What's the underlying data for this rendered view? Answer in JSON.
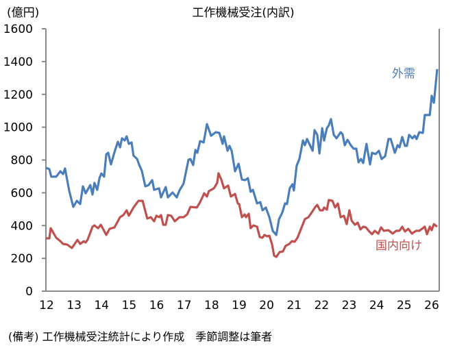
{
  "chart_data": {
    "type": "line",
    "title": "工作機械受注(内訳)",
    "ylabel": "(億円)",
    "xlabel": "",
    "ylim": [
      0,
      1600
    ],
    "yticks": [
      0,
      200,
      400,
      600,
      800,
      1000,
      1200,
      1400,
      1600
    ],
    "xlim": [
      12,
      26.25
    ],
    "xticks": [
      "12",
      "13",
      "14",
      "15",
      "16",
      "17",
      "18",
      "19",
      "20",
      "21",
      "22",
      "23",
      "24",
      "25",
      "26"
    ],
    "grid": false,
    "note": "(備考) 工作機械受注統計により作成　季節調整は筆者",
    "series": [
      {
        "name": "外需",
        "color": "#4a7ebb",
        "points": [
          [
            11.98,
            752
          ],
          [
            12.1,
            744
          ],
          [
            12.17,
            698
          ],
          [
            12.35,
            698
          ],
          [
            12.5,
            731
          ],
          [
            12.6,
            714
          ],
          [
            12.67,
            748
          ],
          [
            12.82,
            614
          ],
          [
            12.97,
            514
          ],
          [
            13.1,
            551
          ],
          [
            13.22,
            531
          ],
          [
            13.32,
            639
          ],
          [
            13.42,
            597
          ],
          [
            13.59,
            647
          ],
          [
            13.67,
            589
          ],
          [
            13.74,
            660
          ],
          [
            13.84,
            618
          ],
          [
            13.92,
            689
          ],
          [
            13.99,
            718
          ],
          [
            14.09,
            698
          ],
          [
            14.17,
            835
          ],
          [
            14.24,
            844
          ],
          [
            14.34,
            773
          ],
          [
            14.47,
            848
          ],
          [
            14.59,
            911
          ],
          [
            14.67,
            877
          ],
          [
            14.74,
            932
          ],
          [
            14.84,
            919
          ],
          [
            14.91,
            944
          ],
          [
            14.99,
            898
          ],
          [
            15.09,
            907
          ],
          [
            15.16,
            827
          ],
          [
            15.29,
            806
          ],
          [
            15.36,
            773
          ],
          [
            15.46,
            735
          ],
          [
            15.59,
            639
          ],
          [
            15.71,
            647
          ],
          [
            15.84,
            677
          ],
          [
            15.91,
            618
          ],
          [
            16.09,
            627
          ],
          [
            16.16,
            572
          ],
          [
            16.33,
            635
          ],
          [
            16.41,
            572
          ],
          [
            16.58,
            602
          ],
          [
            16.73,
            572
          ],
          [
            16.83,
            614
          ],
          [
            16.98,
            656
          ],
          [
            17.16,
            802
          ],
          [
            17.23,
            806
          ],
          [
            17.33,
            769
          ],
          [
            17.41,
            861
          ],
          [
            17.48,
            844
          ],
          [
            17.58,
            915
          ],
          [
            17.71,
            907
          ],
          [
            17.83,
            1019
          ],
          [
            17.98,
            948
          ],
          [
            18.15,
            969
          ],
          [
            18.28,
            965
          ],
          [
            18.4,
            898
          ],
          [
            18.45,
            944
          ],
          [
            18.58,
            856
          ],
          [
            18.65,
            886
          ],
          [
            18.73,
            856
          ],
          [
            18.85,
            731
          ],
          [
            18.98,
            777
          ],
          [
            19.1,
            681
          ],
          [
            19.22,
            677
          ],
          [
            19.32,
            689
          ],
          [
            19.42,
            606
          ],
          [
            19.5,
            618
          ],
          [
            19.65,
            535
          ],
          [
            19.77,
            543
          ],
          [
            19.85,
            493
          ],
          [
            19.97,
            510
          ],
          [
            20.1,
            451
          ],
          [
            20.22,
            368
          ],
          [
            20.35,
            343
          ],
          [
            20.45,
            439
          ],
          [
            20.57,
            480
          ],
          [
            20.67,
            535
          ],
          [
            20.74,
            531
          ],
          [
            20.84,
            627
          ],
          [
            20.94,
            652
          ],
          [
            20.99,
            614
          ],
          [
            21.09,
            765
          ],
          [
            21.19,
            806
          ],
          [
            21.32,
            919
          ],
          [
            21.39,
            890
          ],
          [
            21.47,
            928
          ],
          [
            21.67,
            856
          ],
          [
            21.74,
            982
          ],
          [
            21.84,
            953
          ],
          [
            21.92,
            840
          ],
          [
            22.02,
            994
          ],
          [
            22.09,
            919
          ],
          [
            22.19,
            994
          ],
          [
            22.26,
            1011
          ],
          [
            22.34,
            1049
          ],
          [
            22.44,
            953
          ],
          [
            22.54,
            932
          ],
          [
            22.69,
            969
          ],
          [
            22.76,
            957
          ],
          [
            22.84,
            890
          ],
          [
            22.94,
            923
          ],
          [
            23.06,
            890
          ],
          [
            23.16,
            869
          ],
          [
            23.26,
            869
          ],
          [
            23.34,
            786
          ],
          [
            23.43,
            806
          ],
          [
            23.51,
            781
          ],
          [
            23.63,
            898
          ],
          [
            23.76,
            773
          ],
          [
            23.83,
            844
          ],
          [
            23.96,
            836
          ],
          [
            24.08,
            856
          ],
          [
            24.18,
            806
          ],
          [
            24.31,
            823
          ],
          [
            24.43,
            928
          ],
          [
            24.51,
            928
          ],
          [
            24.66,
            844
          ],
          [
            24.76,
            890
          ],
          [
            24.83,
            877
          ],
          [
            24.93,
            940
          ],
          [
            25.03,
            886
          ],
          [
            25.1,
            886
          ],
          [
            25.18,
            953
          ],
          [
            25.3,
            932
          ],
          [
            25.38,
            948
          ],
          [
            25.45,
            928
          ],
          [
            25.55,
            969
          ],
          [
            25.68,
            965
          ],
          [
            25.75,
            1074
          ],
          [
            25.93,
            1074
          ],
          [
            26.0,
            1191
          ],
          [
            26.08,
            1149
          ],
          [
            26.2,
            1354
          ]
        ]
      },
      {
        "name": "国内向け",
        "color": "#c0504d",
        "points": [
          [
            11.98,
            322
          ],
          [
            12.1,
            322
          ],
          [
            12.15,
            384
          ],
          [
            12.35,
            326
          ],
          [
            12.5,
            305
          ],
          [
            12.6,
            288
          ],
          [
            12.75,
            284
          ],
          [
            12.92,
            263
          ],
          [
            13.12,
            313
          ],
          [
            13.22,
            288
          ],
          [
            13.35,
            305
          ],
          [
            13.42,
            297
          ],
          [
            13.49,
            313
          ],
          [
            13.67,
            393
          ],
          [
            13.74,
            401
          ],
          [
            13.87,
            384
          ],
          [
            13.97,
            405
          ],
          [
            14.17,
            343
          ],
          [
            14.29,
            380
          ],
          [
            14.47,
            389
          ],
          [
            14.67,
            451
          ],
          [
            14.79,
            464
          ],
          [
            14.91,
            493
          ],
          [
            14.99,
            460
          ],
          [
            15.16,
            510
          ],
          [
            15.34,
            551
          ],
          [
            15.49,
            551
          ],
          [
            15.66,
            443
          ],
          [
            15.79,
            451
          ],
          [
            15.91,
            426
          ],
          [
            15.99,
            460
          ],
          [
            16.09,
            451
          ],
          [
            16.16,
            464
          ],
          [
            16.24,
            405
          ],
          [
            16.33,
            405
          ],
          [
            16.41,
            464
          ],
          [
            16.53,
            460
          ],
          [
            16.66,
            426
          ],
          [
            16.83,
            451
          ],
          [
            16.98,
            451
          ],
          [
            17.11,
            468
          ],
          [
            17.23,
            514
          ],
          [
            17.46,
            510
          ],
          [
            17.58,
            543
          ],
          [
            17.73,
            597
          ],
          [
            17.83,
            577
          ],
          [
            17.9,
            610
          ],
          [
            18.08,
            627
          ],
          [
            18.2,
            660
          ],
          [
            18.25,
            719
          ],
          [
            18.35,
            681
          ],
          [
            18.45,
            627
          ],
          [
            18.6,
            644
          ],
          [
            18.7,
            577
          ],
          [
            18.85,
            593
          ],
          [
            18.95,
            535
          ],
          [
            19.0,
            531
          ],
          [
            19.1,
            451
          ],
          [
            19.2,
            468
          ],
          [
            19.25,
            451
          ],
          [
            19.35,
            472
          ],
          [
            19.42,
            384
          ],
          [
            19.52,
            401
          ],
          [
            19.65,
            393
          ],
          [
            19.75,
            330
          ],
          [
            19.85,
            326
          ],
          [
            19.92,
            343
          ],
          [
            20.02,
            334
          ],
          [
            20.1,
            338
          ],
          [
            20.2,
            284
          ],
          [
            20.27,
            217
          ],
          [
            20.35,
            209
          ],
          [
            20.47,
            238
          ],
          [
            20.59,
            242
          ],
          [
            20.69,
            276
          ],
          [
            20.82,
            288
          ],
          [
            20.92,
            305
          ],
          [
            21.02,
            301
          ],
          [
            21.12,
            326
          ],
          [
            21.24,
            376
          ],
          [
            21.39,
            439
          ],
          [
            21.52,
            451
          ],
          [
            21.64,
            480
          ],
          [
            21.77,
            514
          ],
          [
            21.84,
            526
          ],
          [
            21.94,
            493
          ],
          [
            22.04,
            493
          ],
          [
            22.09,
            510
          ],
          [
            22.19,
            497
          ],
          [
            22.26,
            556
          ],
          [
            22.39,
            551
          ],
          [
            22.49,
            510
          ],
          [
            22.59,
            535
          ],
          [
            22.69,
            451
          ],
          [
            22.81,
            460
          ],
          [
            22.91,
            409
          ],
          [
            23.01,
            493
          ],
          [
            23.09,
            430
          ],
          [
            23.21,
            405
          ],
          [
            23.31,
            418
          ],
          [
            23.41,
            376
          ],
          [
            23.51,
            393
          ],
          [
            23.61,
            389
          ],
          [
            23.71,
            368
          ],
          [
            23.83,
            347
          ],
          [
            23.93,
            368
          ],
          [
            24.06,
            351
          ],
          [
            24.16,
            389
          ],
          [
            24.26,
            368
          ],
          [
            24.43,
            372
          ],
          [
            24.58,
            351
          ],
          [
            24.71,
            368
          ],
          [
            24.83,
            368
          ],
          [
            24.93,
            393
          ],
          [
            25.03,
            364
          ],
          [
            25.15,
            380
          ],
          [
            25.28,
            351
          ],
          [
            25.43,
            368
          ],
          [
            25.55,
            368
          ],
          [
            25.68,
            384
          ],
          [
            25.75,
            393
          ],
          [
            25.83,
            347
          ],
          [
            25.93,
            393
          ],
          [
            26.0,
            372
          ],
          [
            26.08,
            409
          ],
          [
            26.2,
            393
          ]
        ]
      }
    ]
  }
}
